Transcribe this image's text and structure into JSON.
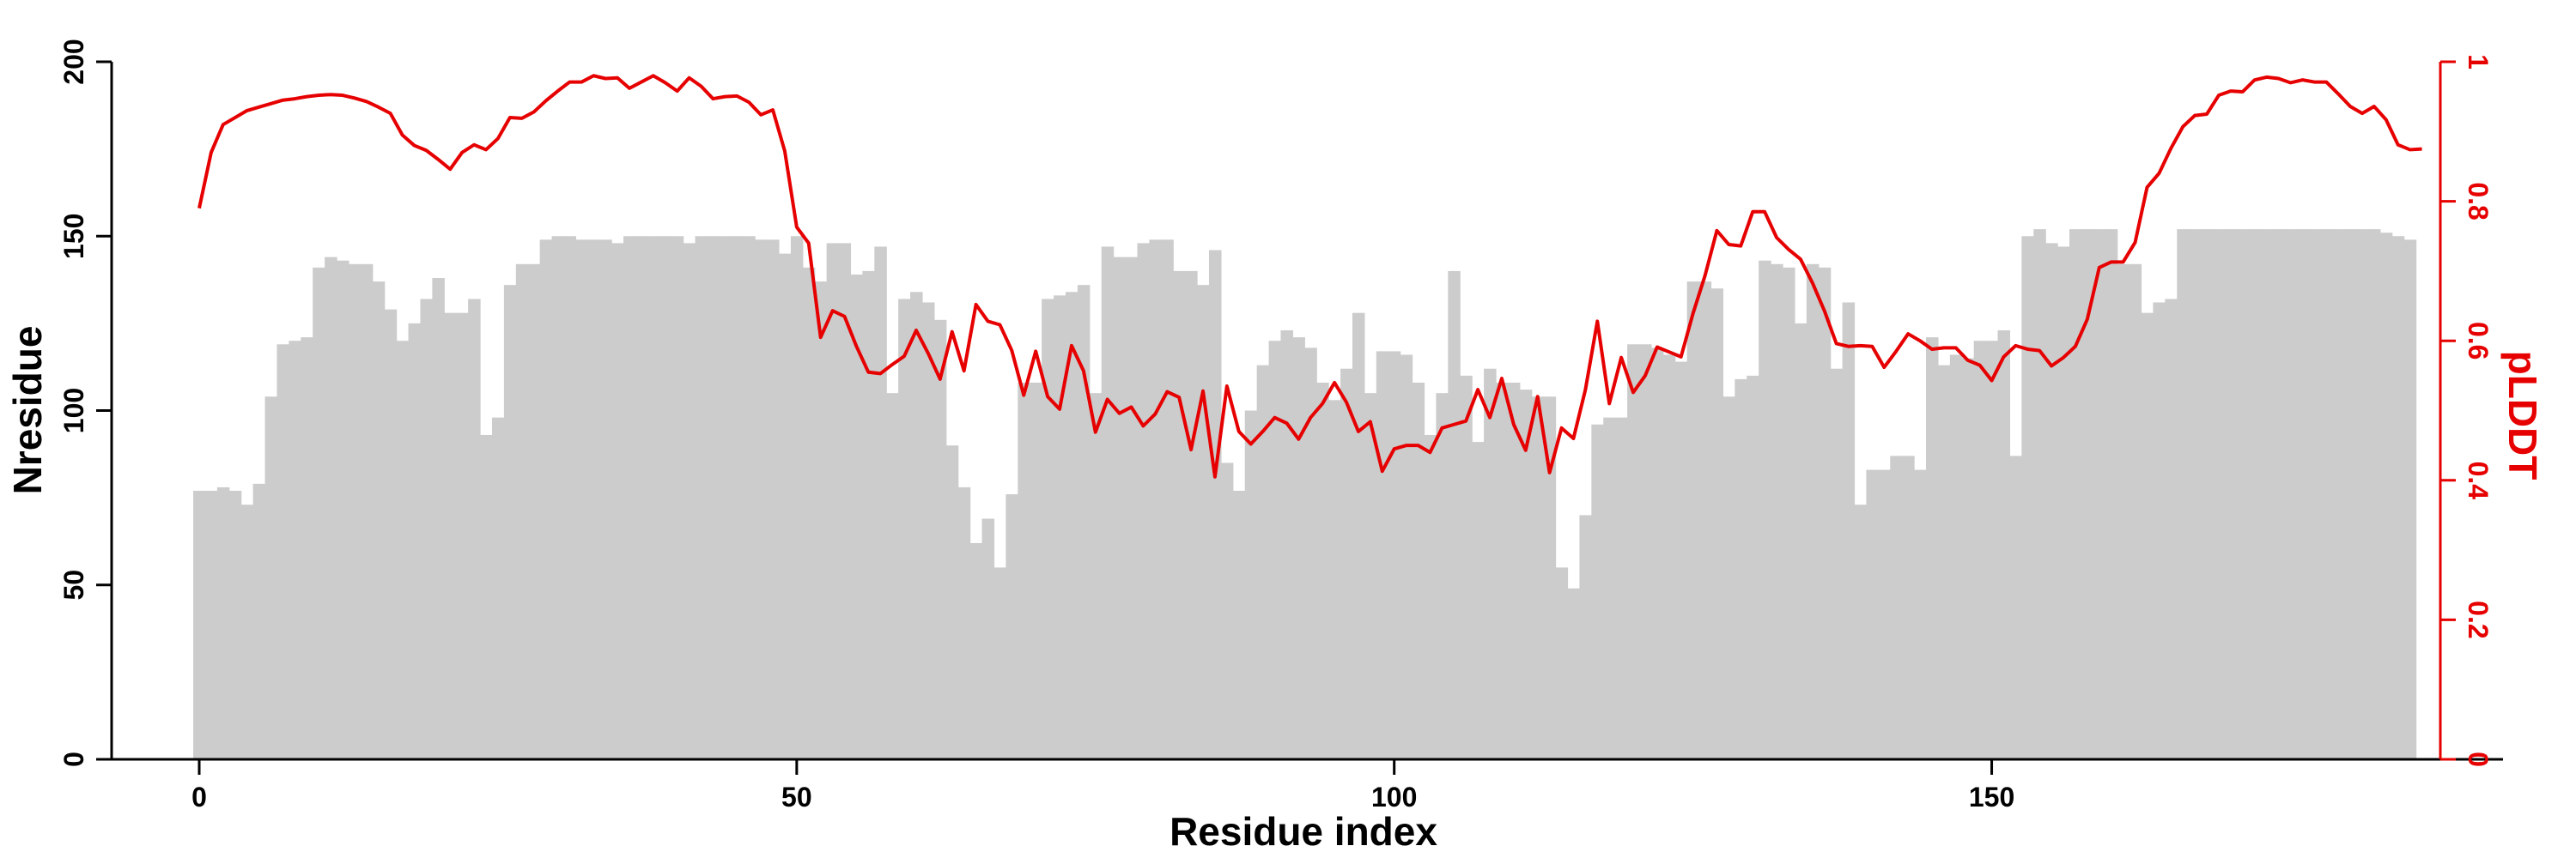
{
  "chart_data": {
    "type": "bar",
    "xlabel": "Residue index",
    "ylabel": "Nresidue",
    "y2label": "pLDDT",
    "xlim": [
      -7.5,
      193
    ],
    "ylim": [
      0,
      200
    ],
    "y2lim": [
      0,
      1
    ],
    "x_ticks": [
      0,
      50,
      100,
      150
    ],
    "x_tick_labels": [
      "0",
      "50",
      "100",
      "150"
    ],
    "y_ticks": [
      0,
      50,
      100,
      150,
      200
    ],
    "y_tick_labels": [
      "0",
      "50",
      "100",
      "150",
      "200"
    ],
    "y2_ticks": [
      0,
      0.2,
      0.4,
      0.6,
      0.8,
      1
    ],
    "y2_tick_labels": [
      "0",
      "0.2",
      "0.4",
      "0.6",
      "0.8",
      "1"
    ],
    "grid": false,
    "series": [
      {
        "kind": "bar",
        "axis": "left",
        "color": "#cccccc",
        "values": [
          77,
          77,
          78,
          77,
          73,
          79,
          104,
          119,
          120,
          121,
          141,
          144,
          143,
          142,
          142,
          137,
          129,
          120,
          125,
          132,
          138,
          128,
          128,
          132,
          93,
          98,
          136,
          142,
          142,
          149,
          150,
          150,
          149,
          149,
          149,
          148,
          150,
          150,
          150,
          150,
          150,
          148,
          150,
          150,
          150,
          150,
          150,
          149,
          149,
          145,
          150,
          141,
          137,
          148,
          148,
          139,
          140,
          147,
          105,
          132,
          134,
          131,
          126,
          90,
          78,
          62,
          69,
          55,
          76,
          108,
          108,
          132,
          133,
          134,
          136,
          105,
          147,
          144,
          144,
          148,
          149,
          149,
          140,
          140,
          136,
          146,
          85,
          77,
          100,
          113,
          120,
          123,
          121,
          118,
          108,
          103,
          112,
          128,
          105,
          117,
          117,
          116,
          108,
          93,
          105,
          140,
          110,
          91,
          112,
          108,
          108,
          106,
          104,
          104,
          55,
          49,
          70,
          96,
          98,
          98,
          119,
          119,
          118,
          116,
          114,
          137,
          137,
          135,
          104,
          109,
          110,
          143,
          142,
          141,
          125,
          142,
          141,
          112,
          131,
          73,
          83,
          83,
          87,
          87,
          83,
          121,
          113,
          116,
          115,
          120,
          120,
          123,
          87,
          150,
          152,
          148,
          147,
          152,
          152,
          152,
          152,
          142,
          142,
          128,
          131,
          132,
          152,
          152,
          152,
          152,
          152,
          152,
          152,
          152,
          152,
          152,
          152,
          152,
          152,
          152,
          152,
          152,
          152,
          151,
          150,
          149
        ]
      },
      {
        "kind": "line",
        "axis": "right",
        "color": "#e60000",
        "values": [
          0.79,
          0.87,
          0.91,
          0.92,
          0.93,
          0.935,
          0.94,
          0.945,
          0.947,
          0.95,
          0.952,
          0.953,
          0.952,
          0.948,
          0.943,
          0.935,
          0.926,
          0.895,
          0.88,
          0.873,
          0.86,
          0.846,
          0.87,
          0.881,
          0.874,
          0.89,
          0.92,
          0.919,
          0.928,
          0.944,
          0.958,
          0.971,
          0.971,
          0.98,
          0.976,
          0.977,
          0.962,
          0.971,
          0.98,
          0.97,
          0.958,
          0.977,
          0.965,
          0.947,
          0.95,
          0.951,
          0.942,
          0.924,
          0.931,
          0.872,
          0.763,
          0.74,
          0.605,
          0.643,
          0.635,
          0.592,
          0.555,
          0.553,
          0.566,
          0.578,
          0.615,
          0.582,
          0.545,
          0.613,
          0.557,
          0.652,
          0.628,
          0.623,
          0.586,
          0.522,
          0.585,
          0.52,
          0.502,
          0.593,
          0.557,
          0.469,
          0.516,
          0.496,
          0.505,
          0.478,
          0.495,
          0.527,
          0.519,
          0.444,
          0.528,
          0.405,
          0.535,
          0.47,
          0.452,
          0.47,
          0.49,
          0.482,
          0.459,
          0.49,
          0.51,
          0.54,
          0.512,
          0.47,
          0.484,
          0.413,
          0.445,
          0.45,
          0.45,
          0.44,
          0.475,
          0.48,
          0.485,
          0.53,
          0.49,
          0.546,
          0.48,
          0.443,
          0.52,
          0.411,
          0.475,
          0.46,
          0.53,
          0.628,
          0.51,
          0.576,
          0.526,
          0.55,
          0.591,
          0.584,
          0.577,
          0.639,
          0.693,
          0.758,
          0.738,
          0.736,
          0.785,
          0.785,
          0.748,
          0.731,
          0.717,
          0.683,
          0.643,
          0.596,
          0.592,
          0.593,
          0.592,
          0.562,
          0.585,
          0.61,
          0.6,
          0.588,
          0.59,
          0.59,
          0.572,
          0.565,
          0.543,
          0.577,
          0.593,
          0.588,
          0.586,
          0.564,
          0.576,
          0.592,
          0.631,
          0.705,
          0.713,
          0.713,
          0.741,
          0.82,
          0.84,
          0.876,
          0.907,
          0.923,
          0.925,
          0.952,
          0.958,
          0.957,
          0.974,
          0.978,
          0.976,
          0.97,
          0.974,
          0.971,
          0.971,
          0.954,
          0.936,
          0.926,
          0.936,
          0.917,
          0.881,
          0.874,
          0.875
        ]
      }
    ]
  }
}
